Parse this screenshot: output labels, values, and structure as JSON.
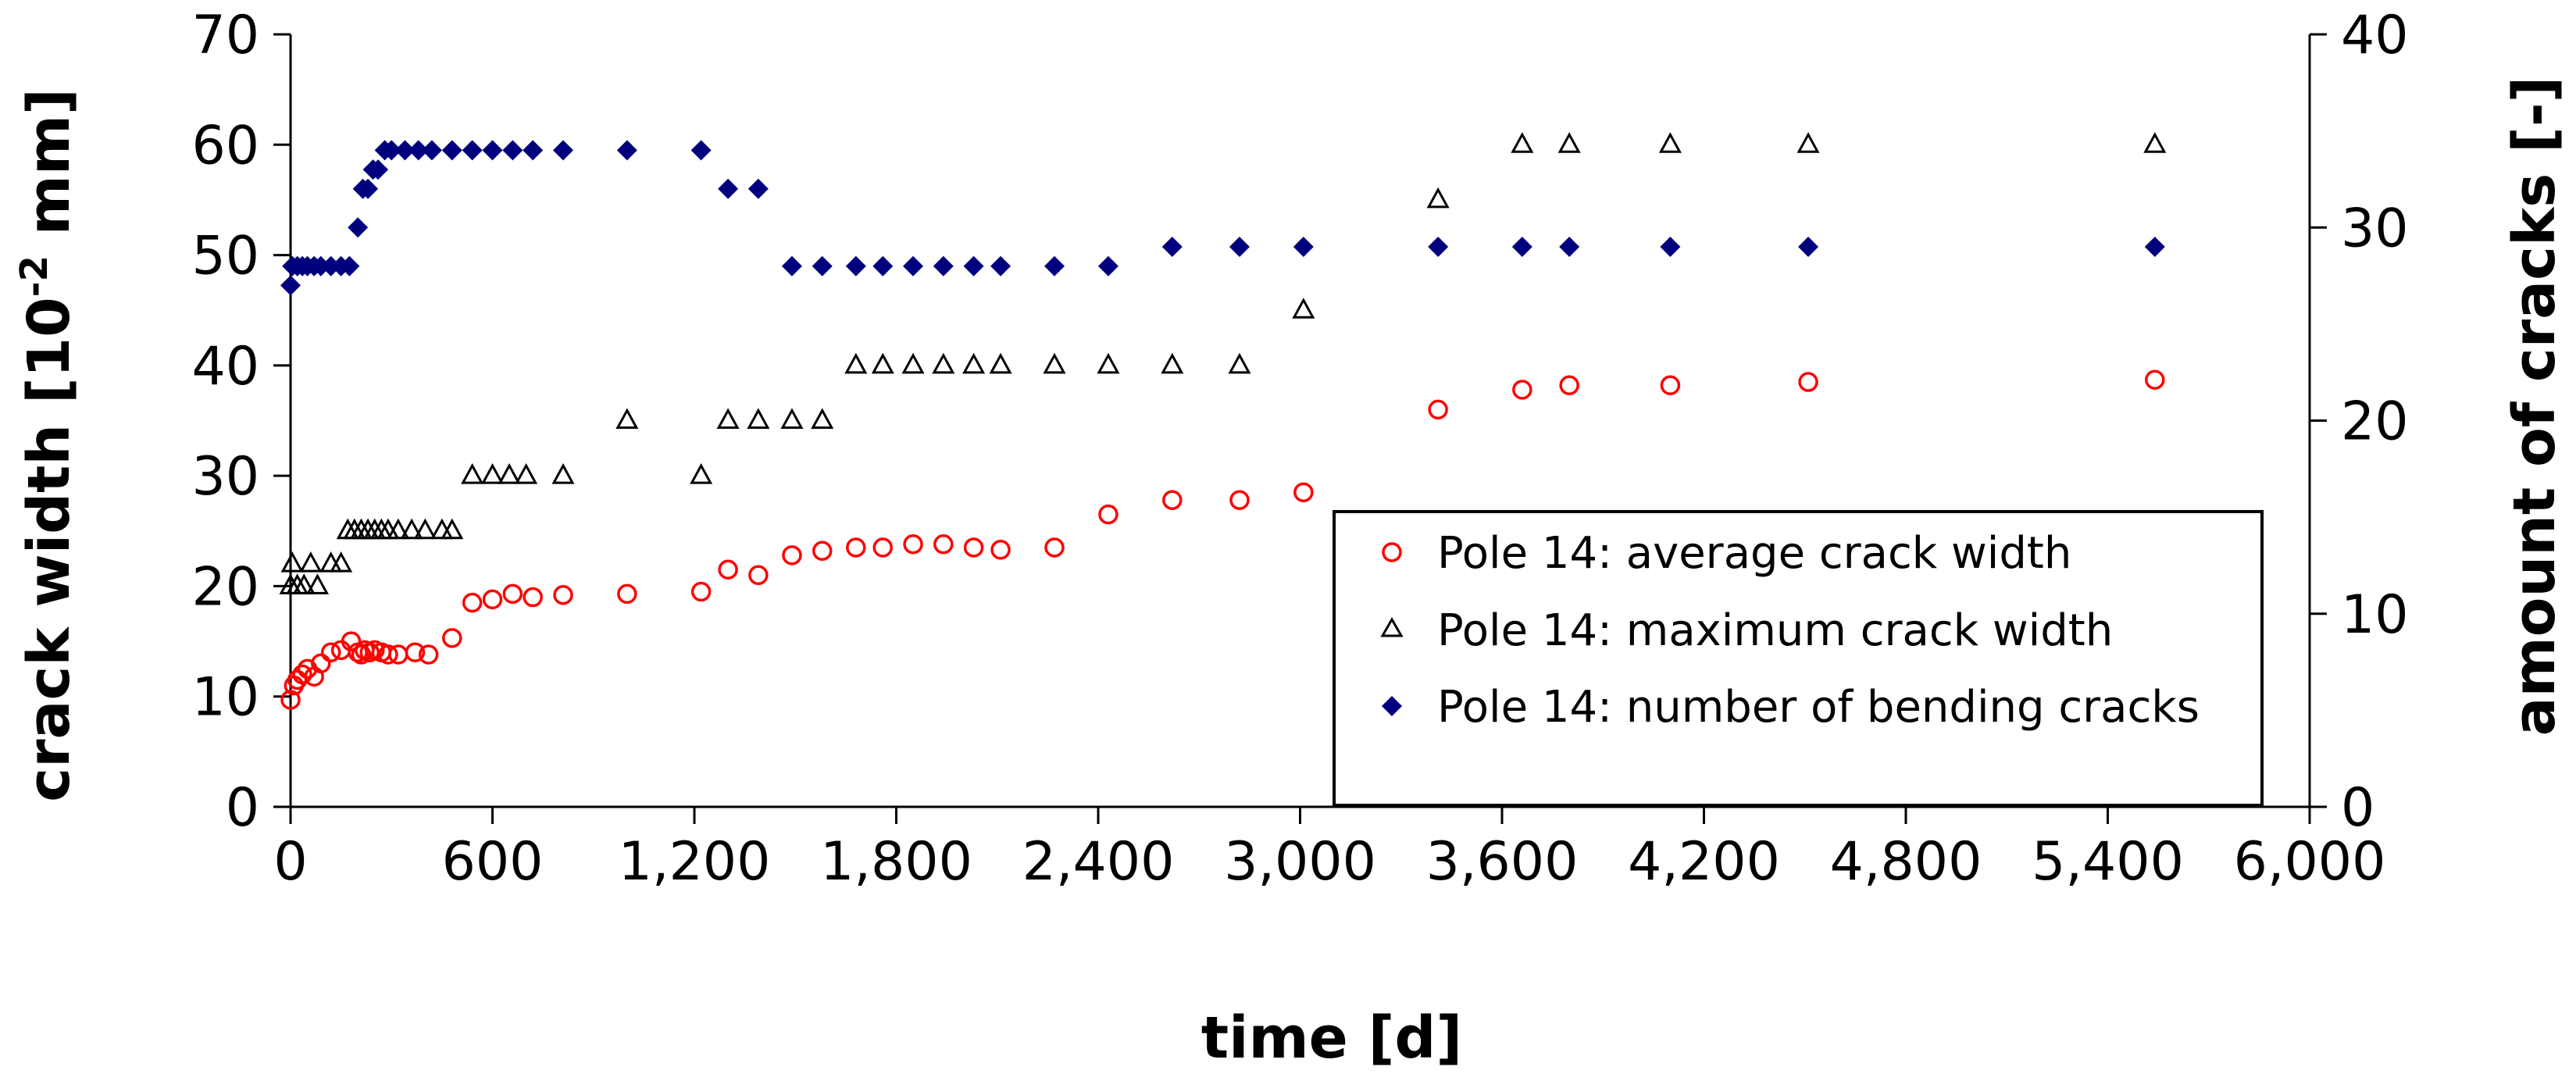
{
  "chart_data": {
    "type": "scatter",
    "xlabel": "time [d]",
    "ylabel": "crack width [10⁻² mm]",
    "ylabel_parts": {
      "main": "crack width  [10",
      "sup": "-2",
      "tail": " mm]"
    },
    "y2label": "amount of cracks [-]",
    "xlim": [
      0,
      6000
    ],
    "ylim": [
      0,
      70
    ],
    "y2lim": [
      0,
      40
    ],
    "x_ticks": [
      0,
      600,
      1200,
      1800,
      2400,
      3000,
      3600,
      4200,
      4800,
      5400,
      6000
    ],
    "x_tick_labels": [
      "0",
      "600",
      "1,200",
      "1,800",
      "2,400",
      "3,000",
      "3,600",
      "4,200",
      "4,800",
      "5,400",
      "6,000"
    ],
    "y_ticks": [
      0,
      10,
      20,
      30,
      40,
      50,
      60,
      70
    ],
    "y_tick_labels": [
      "0",
      "10",
      "20",
      "30",
      "40",
      "50",
      "60",
      "70"
    ],
    "y2_ticks": [
      0,
      10,
      20,
      30,
      40
    ],
    "y2_tick_labels": [
      "0",
      "10",
      "20",
      "30",
      "40"
    ],
    "legend_position": "lower-right",
    "series": [
      {
        "name": "Pole 14: average crack width",
        "marker": "circle-open",
        "color": "#ff0000",
        "axis": "left",
        "points": [
          [
            0,
            9.7
          ],
          [
            10,
            11
          ],
          [
            20,
            11.5
          ],
          [
            35,
            12
          ],
          [
            50,
            12.5
          ],
          [
            70,
            11.8
          ],
          [
            90,
            13
          ],
          [
            120,
            14
          ],
          [
            150,
            14.2
          ],
          [
            180,
            15
          ],
          [
            200,
            14
          ],
          [
            210,
            13.8
          ],
          [
            220,
            14.2
          ],
          [
            235,
            14
          ],
          [
            250,
            14.2
          ],
          [
            270,
            14
          ],
          [
            290,
            13.8
          ],
          [
            320,
            13.8
          ],
          [
            370,
            14
          ],
          [
            410,
            13.8
          ],
          [
            480,
            15.3
          ],
          [
            540,
            18.5
          ],
          [
            600,
            18.8
          ],
          [
            660,
            19.3
          ],
          [
            720,
            19
          ],
          [
            810,
            19.2
          ],
          [
            1000,
            19.3
          ],
          [
            1220,
            19.5
          ],
          [
            1300,
            21.5
          ],
          [
            1390,
            21
          ],
          [
            1490,
            22.8
          ],
          [
            1580,
            23.2
          ],
          [
            1680,
            23.5
          ],
          [
            1760,
            23.5
          ],
          [
            1850,
            23.8
          ],
          [
            1940,
            23.8
          ],
          [
            2030,
            23.5
          ],
          [
            2110,
            23.3
          ],
          [
            2270,
            23.5
          ],
          [
            2430,
            26.5
          ],
          [
            2620,
            27.8
          ],
          [
            2820,
            27.8
          ],
          [
            3010,
            28.5
          ],
          [
            3410,
            36
          ],
          [
            3660,
            37.8
          ],
          [
            3800,
            38.2
          ],
          [
            4100,
            38.2
          ],
          [
            4510,
            38.5
          ],
          [
            5540,
            38.7
          ]
        ]
      },
      {
        "name": "Pole 14: maximum crack width",
        "marker": "triangle-open",
        "color": "#000000",
        "axis": "left",
        "points": [
          [
            0,
            20
          ],
          [
            5,
            22
          ],
          [
            20,
            20
          ],
          [
            40,
            20
          ],
          [
            60,
            22
          ],
          [
            80,
            20
          ],
          [
            120,
            22
          ],
          [
            150,
            22
          ],
          [
            170,
            25
          ],
          [
            190,
            25
          ],
          [
            210,
            25
          ],
          [
            230,
            25
          ],
          [
            250,
            25
          ],
          [
            270,
            25
          ],
          [
            290,
            25
          ],
          [
            320,
            25
          ],
          [
            360,
            25
          ],
          [
            400,
            25
          ],
          [
            450,
            25
          ],
          [
            480,
            25
          ],
          [
            540,
            30
          ],
          [
            600,
            30
          ],
          [
            650,
            30
          ],
          [
            700,
            30
          ],
          [
            810,
            30
          ],
          [
            1000,
            35
          ],
          [
            1220,
            30
          ],
          [
            1300,
            35
          ],
          [
            1390,
            35
          ],
          [
            1490,
            35
          ],
          [
            1580,
            35
          ],
          [
            1680,
            40
          ],
          [
            1760,
            40
          ],
          [
            1850,
            40
          ],
          [
            1940,
            40
          ],
          [
            2030,
            40
          ],
          [
            2110,
            40
          ],
          [
            2270,
            40
          ],
          [
            2430,
            40
          ],
          [
            2620,
            40
          ],
          [
            2820,
            40
          ],
          [
            3010,
            45
          ],
          [
            3410,
            55
          ],
          [
            3660,
            60
          ],
          [
            3800,
            60
          ],
          [
            4100,
            60
          ],
          [
            4510,
            60
          ],
          [
            5540,
            60
          ]
        ]
      },
      {
        "name": "Pole 14: number of bending cracks",
        "marker": "diamond-filled",
        "color": "#00007f",
        "axis": "right",
        "points": [
          [
            0,
            27
          ],
          [
            5,
            28
          ],
          [
            20,
            28
          ],
          [
            35,
            28
          ],
          [
            50,
            28
          ],
          [
            70,
            28
          ],
          [
            90,
            28
          ],
          [
            120,
            28
          ],
          [
            150,
            28
          ],
          [
            175,
            28
          ],
          [
            200,
            30
          ],
          [
            215,
            32
          ],
          [
            230,
            32
          ],
          [
            245,
            33
          ],
          [
            260,
            33
          ],
          [
            280,
            34
          ],
          [
            300,
            34
          ],
          [
            340,
            34
          ],
          [
            380,
            34
          ],
          [
            420,
            34
          ],
          [
            480,
            34
          ],
          [
            540,
            34
          ],
          [
            600,
            34
          ],
          [
            660,
            34
          ],
          [
            720,
            34
          ],
          [
            810,
            34
          ],
          [
            1000,
            34
          ],
          [
            1220,
            34
          ],
          [
            1300,
            32
          ],
          [
            1390,
            32
          ],
          [
            1490,
            28
          ],
          [
            1580,
            28
          ],
          [
            1680,
            28
          ],
          [
            1760,
            28
          ],
          [
            1850,
            28
          ],
          [
            1940,
            28
          ],
          [
            2030,
            28
          ],
          [
            2110,
            28
          ],
          [
            2270,
            28
          ],
          [
            2430,
            28
          ],
          [
            2620,
            29
          ],
          [
            2820,
            29
          ],
          [
            3010,
            29
          ],
          [
            3410,
            29
          ],
          [
            3660,
            29
          ],
          [
            3800,
            29
          ],
          [
            4100,
            29
          ],
          [
            4510,
            29
          ],
          [
            5540,
            29
          ]
        ]
      }
    ]
  }
}
